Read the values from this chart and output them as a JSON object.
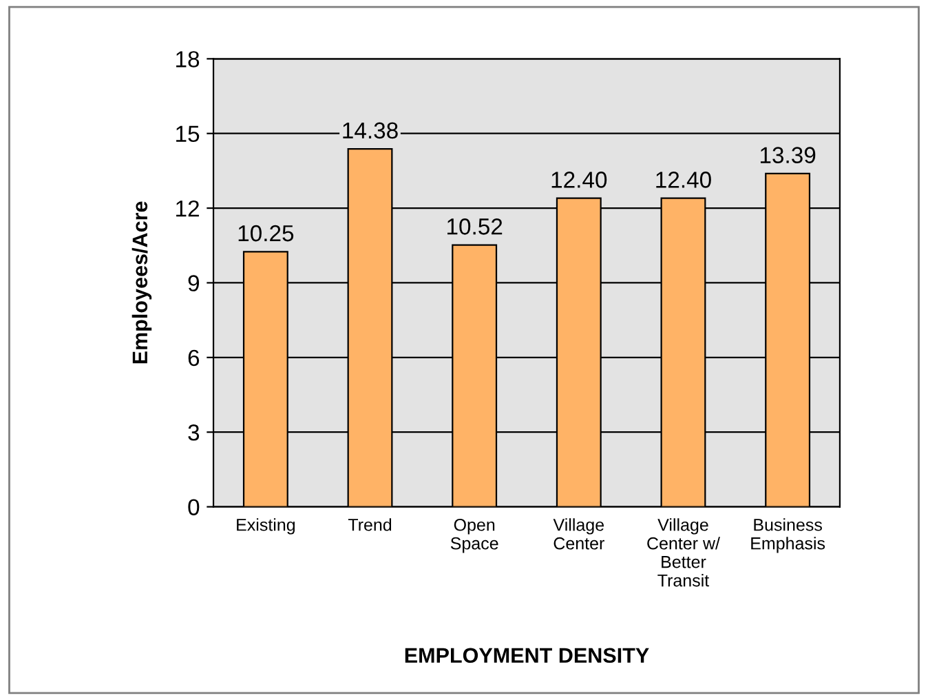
{
  "chart_data": {
    "type": "bar",
    "xlabel": "EMPLOYMENT DENSITY",
    "ylabel": "Employees/Acre",
    "categories": [
      "Existing",
      "Trend",
      "Open\nSpace",
      "Village\nCenter",
      "Village\nCenter w/\nBetter\nTransit",
      "Business\nEmphasis"
    ],
    "values": [
      10.25,
      14.38,
      10.52,
      12.4,
      12.4,
      13.39
    ],
    "value_labels": [
      "10.25",
      "14.38",
      "10.52",
      "12.40",
      "12.40",
      "13.39"
    ],
    "color": "#ffb366",
    "ylim": [
      0,
      18
    ],
    "yticks": [
      0,
      3,
      6,
      9,
      12,
      15,
      18
    ],
    "grid": "y",
    "legend": false
  }
}
